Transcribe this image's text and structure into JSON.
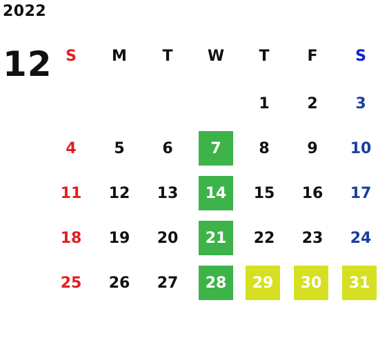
{
  "year": "2022",
  "month": "12",
  "weekdays": [
    "S",
    "M",
    "T",
    "W",
    "T",
    "F",
    "S"
  ],
  "colors": {
    "sunday": "#e02020",
    "saturday": "#1a3f9e",
    "saturday_header": "#1020d0",
    "highlight_wednesday": "#3db34a",
    "highlight_yearend": "#d6e022"
  },
  "weeks": [
    [
      "",
      "",
      "",
      "",
      "1",
      "2",
      "3"
    ],
    [
      "4",
      "5",
      "6",
      "7",
      "8",
      "9",
      "10"
    ],
    [
      "11",
      "12",
      "13",
      "14",
      "15",
      "16",
      "17"
    ],
    [
      "18",
      "19",
      "20",
      "21",
      "22",
      "23",
      "24"
    ],
    [
      "25",
      "26",
      "27",
      "28",
      "29",
      "30",
      "31"
    ]
  ],
  "highlights": {
    "green": [
      "7",
      "14",
      "21",
      "28"
    ],
    "yellow": [
      "29",
      "30",
      "31"
    ]
  }
}
